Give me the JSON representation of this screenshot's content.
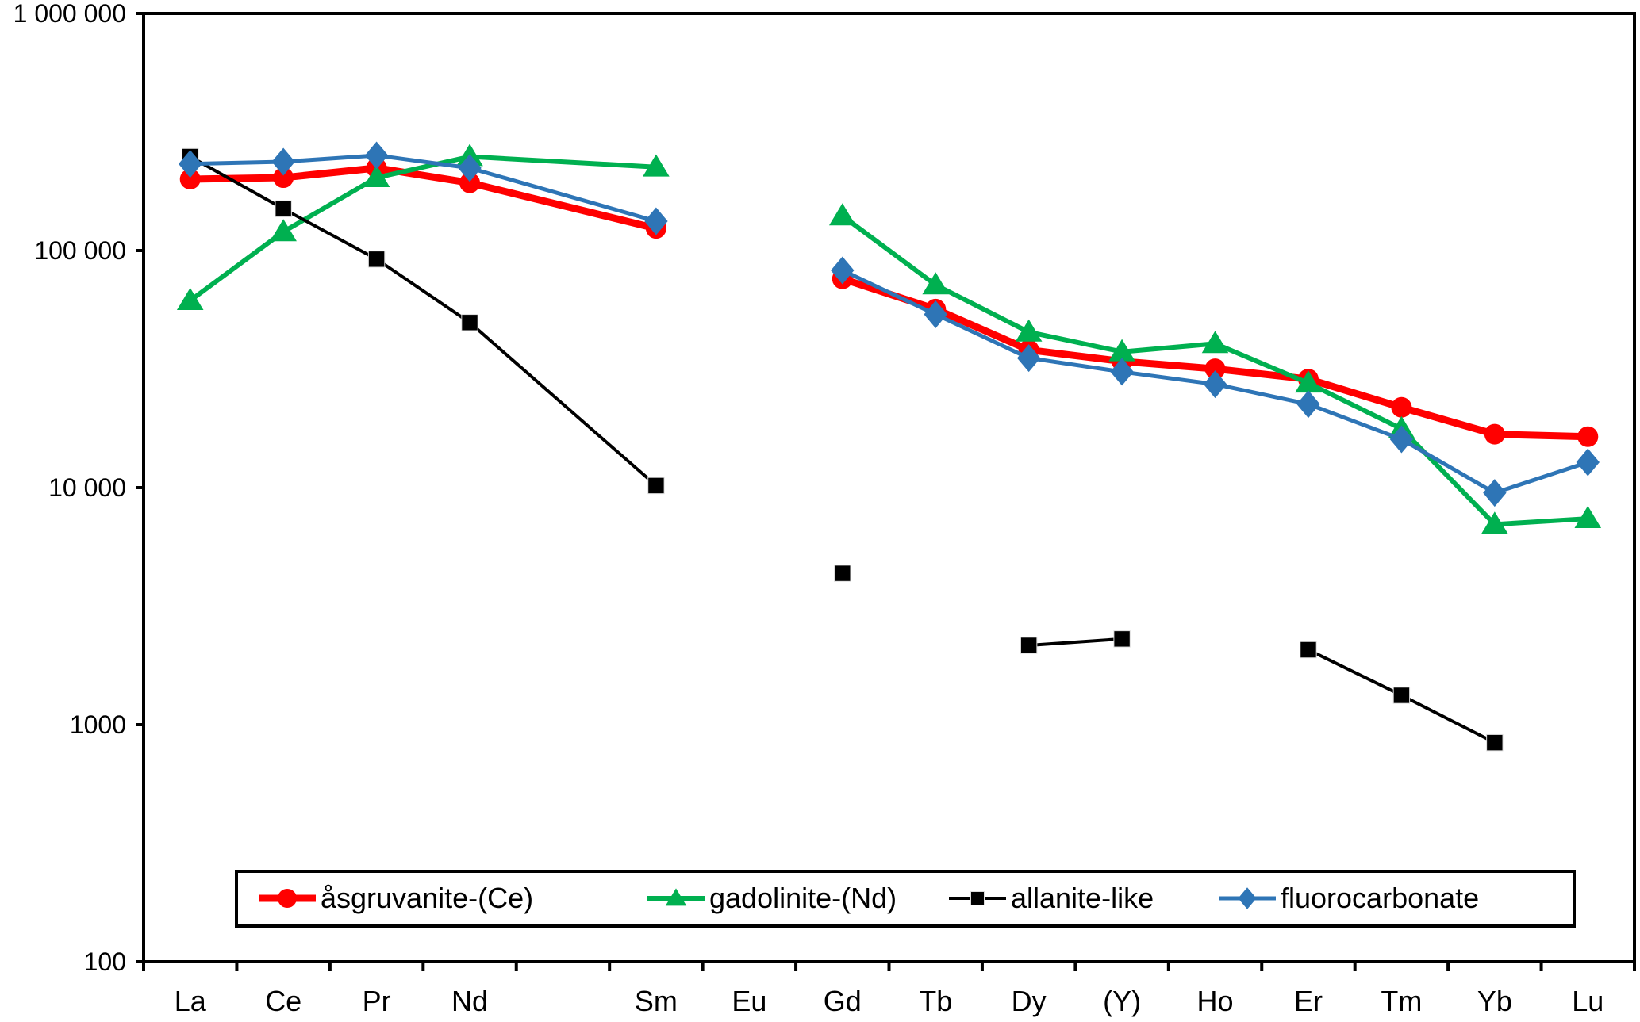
{
  "chart_data": {
    "type": "line",
    "title": "",
    "xlabel": "",
    "ylabel": "",
    "yscale": "log",
    "ylim": [
      100,
      1000000
    ],
    "grid": false,
    "legend_position": "bottom-inside",
    "y_ticks": [
      {
        "value": 1000000,
        "label": "1 000 000"
      },
      {
        "value": 100000,
        "label": "100 000"
      },
      {
        "value": 10000,
        "label": "10 000"
      },
      {
        "value": 1000,
        "label": "1000"
      },
      {
        "value": 100,
        "label": "100"
      }
    ],
    "categories": [
      "La",
      "Ce",
      "Pr",
      "Nd",
      "",
      "Sm",
      "Eu",
      "Gd",
      "Tb",
      "Dy",
      "(Y)",
      "Ho",
      "Er",
      "Tm",
      "Yb",
      "Lu"
    ],
    "series": [
      {
        "name": "åsgruvanite-(Ce)",
        "color": "#FF0000",
        "marker": "circle",
        "values": [
          200000,
          203000,
          223000,
          193000,
          null,
          124000,
          null,
          76000,
          56600,
          38100,
          34100,
          31700,
          28700,
          21800,
          16800,
          16400
        ]
      },
      {
        "name": "gadolinite-(Nd)",
        "color": "#00B050",
        "marker": "triangle",
        "values": [
          61500,
          120000,
          203000,
          249000,
          null,
          225000,
          null,
          140000,
          71600,
          45300,
          37400,
          40500,
          27600,
          17700,
          7000,
          7400
        ]
      },
      {
        "name": "allanite-like",
        "color": "#000000",
        "marker": "square",
        "values": [
          249000,
          150000,
          92000,
          49700,
          null,
          10200,
          null,
          4350,
          null,
          2160,
          2300,
          null,
          2070,
          1330,
          840,
          null
        ]
      },
      {
        "name": "fluorocarbonate",
        "color": "#2E75B6",
        "marker": "diamond",
        "values": [
          232000,
          237000,
          252000,
          223000,
          null,
          133000,
          null,
          82500,
          53800,
          35200,
          30800,
          27300,
          22500,
          16000,
          9500,
          12800
        ]
      }
    ]
  }
}
